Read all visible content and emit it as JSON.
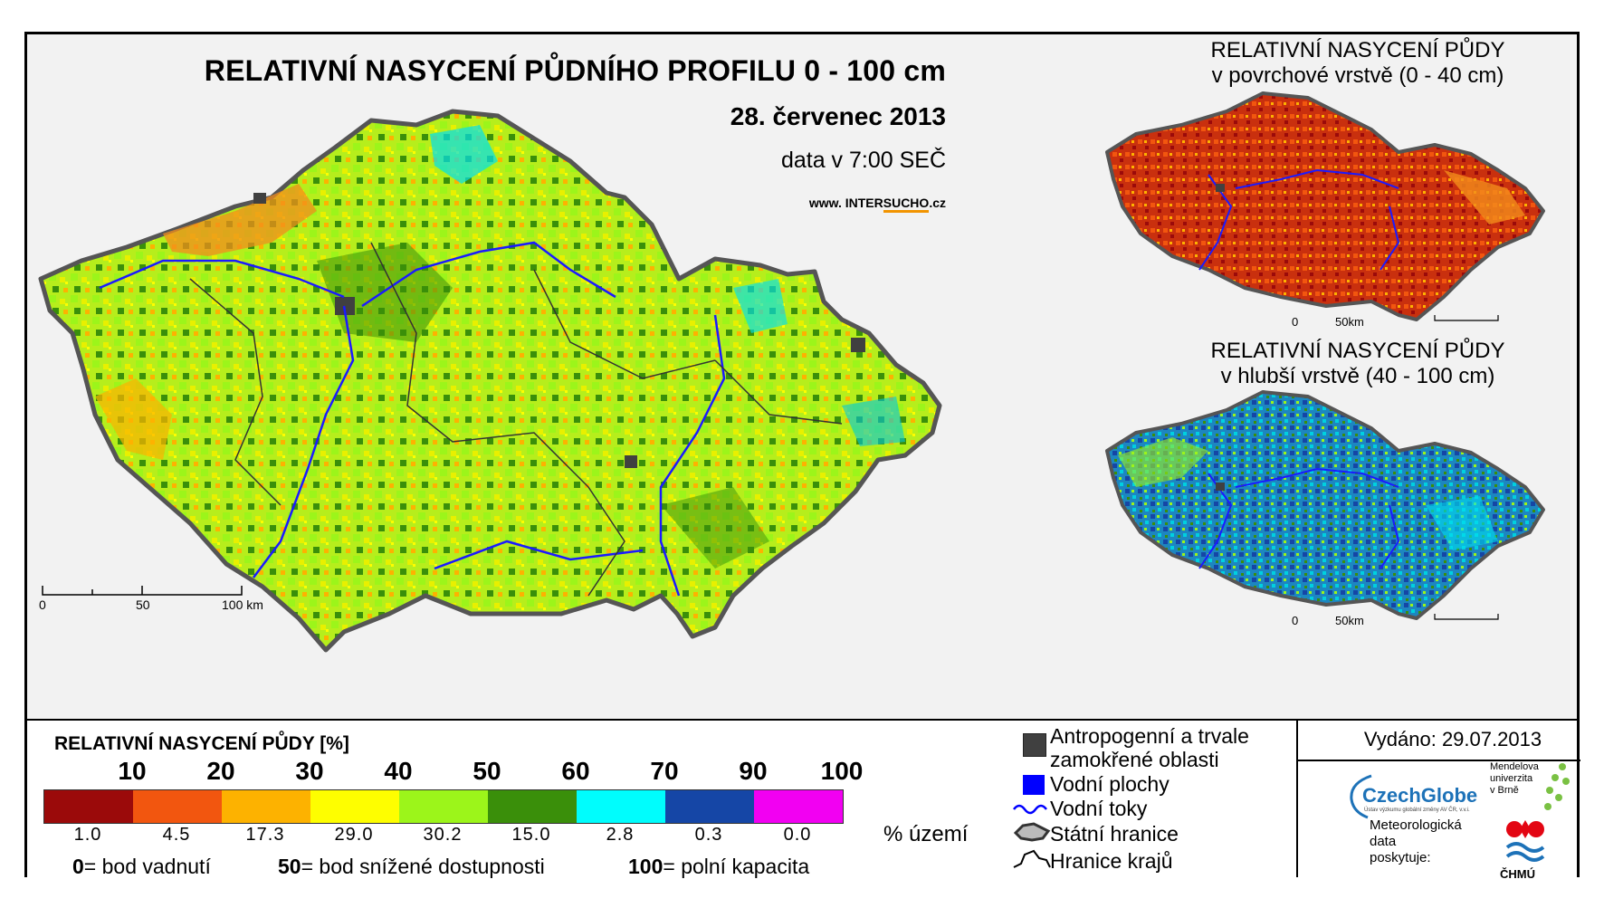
{
  "main_map": {
    "title": "RELATIVNÍ NASYCENÍ PŮDNÍHO PROFILU 0 - 100 cm",
    "date": "28. červenec 2013",
    "time": "data v 7:00 SEČ",
    "website_prefix": "www. INTER",
    "website_accent": "SUCHO",
    "website_suffix": ".cz",
    "scale_labels": [
      "0",
      "50",
      "100 km"
    ]
  },
  "inset_top": {
    "title_line1": "RELATIVNÍ NASYCENÍ PŮDY",
    "title_line2": "v povrchové vrstvě (0 - 40 cm)",
    "scale_labels": [
      "0",
      "50km"
    ]
  },
  "inset_bottom": {
    "title_line1": "RELATIVNÍ NASYCENÍ PŮDY",
    "title_line2": "v hlubší vrstvě (40 - 100 cm)",
    "scale_labels": [
      "0",
      "50km"
    ]
  },
  "legend": {
    "title": "RELATIVNÍ NASYCENÍ PŮDY [%]",
    "thresholds": [
      "10",
      "20",
      "30",
      "40",
      "50",
      "60",
      "70",
      "90",
      "100"
    ],
    "colors": [
      "#9b0a0a",
      "#f2560f",
      "#fdb200",
      "#fefe00",
      "#9cf51a",
      "#3a8f0a",
      "#00fdfd",
      "#1546a6",
      "#f200f2"
    ],
    "area_percent": [
      "1.0",
      "4.5",
      "17.3",
      "29.0",
      "30.2",
      "15.0",
      "2.8",
      "0.3",
      "0.0"
    ],
    "area_unit": "% území",
    "explain": [
      {
        "value": "0",
        "text": "= bod vadnutí"
      },
      {
        "value": "50",
        "text": "= bod snížené dostupnosti"
      },
      {
        "value": "100",
        "text": "= polní kapacita"
      }
    ]
  },
  "symbols": {
    "anthropogenic_line1": "Antropogenní a trvale",
    "anthropogenic_line2": "zamokřené oblasti",
    "water_areas": "Vodní plochy",
    "water_streams": "Vodní toky",
    "state_border": "Státní hranice",
    "region_border": "Hranice krajů",
    "anthropogenic_color": "#404040",
    "water_color": "#0000ff"
  },
  "issued": "Vydáno: 29.07.2013",
  "logos": {
    "czechglobe": "CzechGlobe",
    "czechglobe_sub": "Ústav výzkumu globální změny AV ČR, v.v.i.",
    "mendel_line1": "Mendelova",
    "mendel_line2": "univerzita",
    "mendel_line3": "v Brně",
    "meteo_line1": "Meteorologická",
    "meteo_line2": "data",
    "meteo_line3": "poskytuje:",
    "chmu": "ČHMÚ"
  }
}
